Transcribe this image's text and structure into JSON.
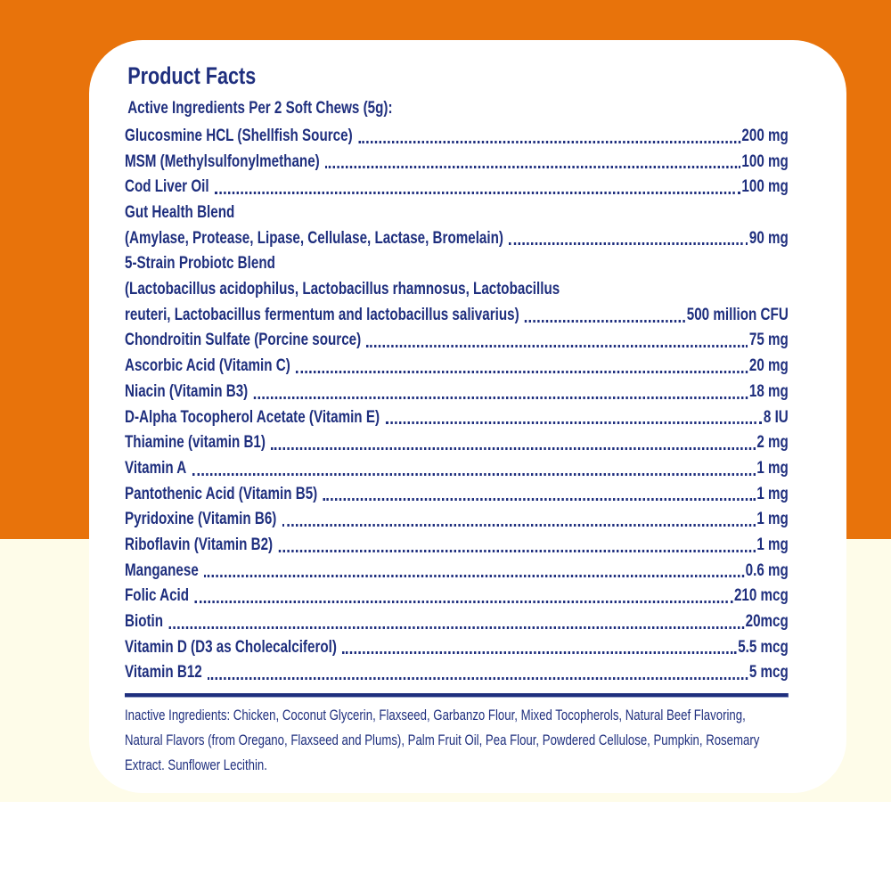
{
  "colors": {
    "orange": "#e8730b",
    "cream": "#fefce9",
    "text": "#1f2f7e",
    "card": "#ffffff"
  },
  "title": "Product Facts",
  "subtitle": "Active Ingredients Per 2 Soft Chews  (5g):",
  "rows": [
    {
      "name": "Glucosmine HCL (Shellfish Source)",
      "amount": "200 mg"
    },
    {
      "name": "MSM  (Methylsulfonylmethane)",
      "amount": "100 mg"
    },
    {
      "name": "Cod Liver Oil",
      "amount": "100 mg"
    },
    {
      "name": "Gut Health Blend",
      "amount": ""
    },
    {
      "name": "(Amylase, Protease, Lipase, Cellulase, Lactase, Bromelain)",
      "amount": "90 mg"
    },
    {
      "name": "5-Strain Probiotc Blend",
      "amount": ""
    },
    {
      "name": "(Lactobacillus acidophilus, Lactobacillus rhamnosus, Lactobacillus",
      "amount": ""
    },
    {
      "name": "reuteri, Lactobacillus fermentum and lactobacillus salivarius)",
      "amount": "500 million CFU"
    },
    {
      "name": "Chondroitin Sulfate (Porcine source)",
      "amount": "75 mg"
    },
    {
      "name": "Ascorbic Acid (Vitamin C)",
      "amount": "20 mg"
    },
    {
      "name": "Niacin (Vitamin B3)",
      "amount": "18 mg"
    },
    {
      "name": "D-Alpha Tocopherol Acetate (Vitamin E)",
      "amount": "8 IU"
    },
    {
      "name": "Thiamine (vitamin B1)",
      "amount": "2 mg"
    },
    {
      "name": "Vitamin A",
      "amount": "1 mg"
    },
    {
      "name": "Pantothenic Acid (Vitamin B5)",
      "amount": "1 mg"
    },
    {
      "name": "Pyridoxine (Vitamin B6)",
      "amount": "1 mg"
    },
    {
      "name": "Riboflavin (Vitamin B2)",
      "amount": "1 mg"
    },
    {
      "name": "Manganese",
      "amount": "0.6 mg"
    },
    {
      "name": "Folic Acid",
      "amount": "210 mcg"
    },
    {
      "name": "Biotin",
      "amount": "20mcg"
    },
    {
      "name": "Vitamin D (D3 as Cholecalciferol)",
      "amount": "5.5 mcg"
    },
    {
      "name": "Vitamin B12",
      "amount": "5 mcg"
    }
  ],
  "inactive": "Inactive Ingredients: Chicken, Coconut Glycerin, Flaxseed, Garbanzo Flour, Mixed Tocopherols, Natural Beef  Flavoring, Natural Flavors (from Oregano, Flaxseed and Plums), Palm Fruit Oil, Pea Flour, Powdered Cellulose, Pumpkin, Rosemary Extract. Sunflower Lecithin."
}
